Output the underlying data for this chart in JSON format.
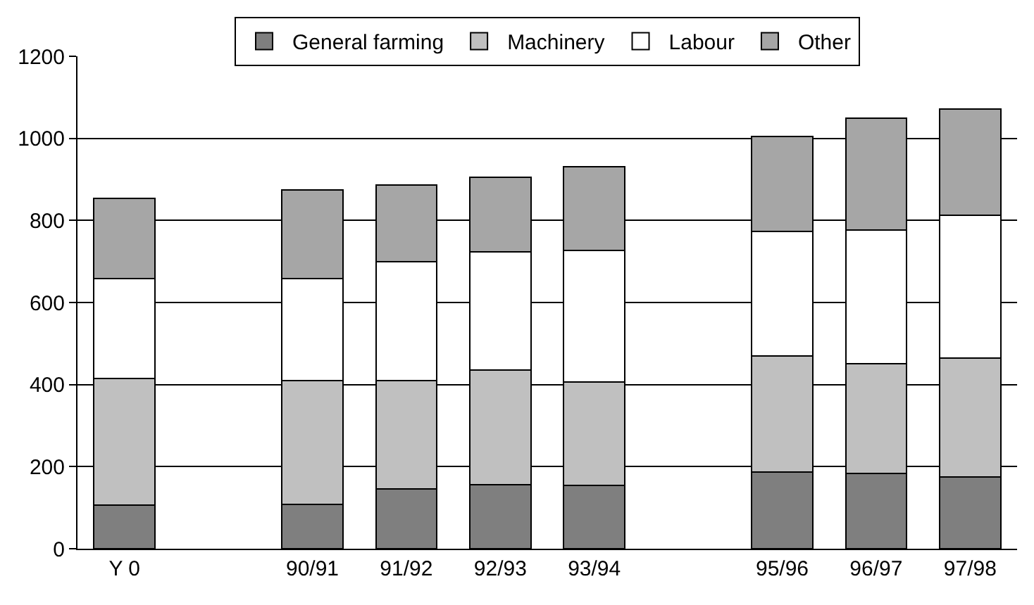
{
  "chart_data": {
    "type": "bar",
    "stacked": true,
    "categories": [
      "Y 0",
      null,
      "90/91",
      "91/92",
      "92/93",
      "93/94",
      null,
      "95/96",
      "96/97",
      "97/98"
    ],
    "series": [
      {
        "name": "General farming",
        "color": "#7f7f7f",
        "values": [
          106,
          null,
          108,
          145,
          156,
          155,
          null,
          187,
          183,
          175
        ]
      },
      {
        "name": "Machinery",
        "color": "#c0c0c0",
        "values": [
          309,
          null,
          302,
          265,
          279,
          252,
          null,
          282,
          268,
          290
        ]
      },
      {
        "name": "Labour",
        "color": "#ffffff",
        "values": [
          243,
          null,
          248,
          289,
          288,
          320,
          null,
          304,
          326,
          348
        ]
      },
      {
        "name": "Other",
        "color": "#a6a6a6",
        "values": [
          195,
          null,
          216,
          188,
          183,
          204,
          null,
          231,
          273,
          259
        ]
      }
    ],
    "ylim": [
      0,
      1200
    ],
    "yticks": [
      0,
      200,
      400,
      600,
      800,
      1000,
      1200
    ],
    "grid": "y",
    "legend": "top"
  }
}
